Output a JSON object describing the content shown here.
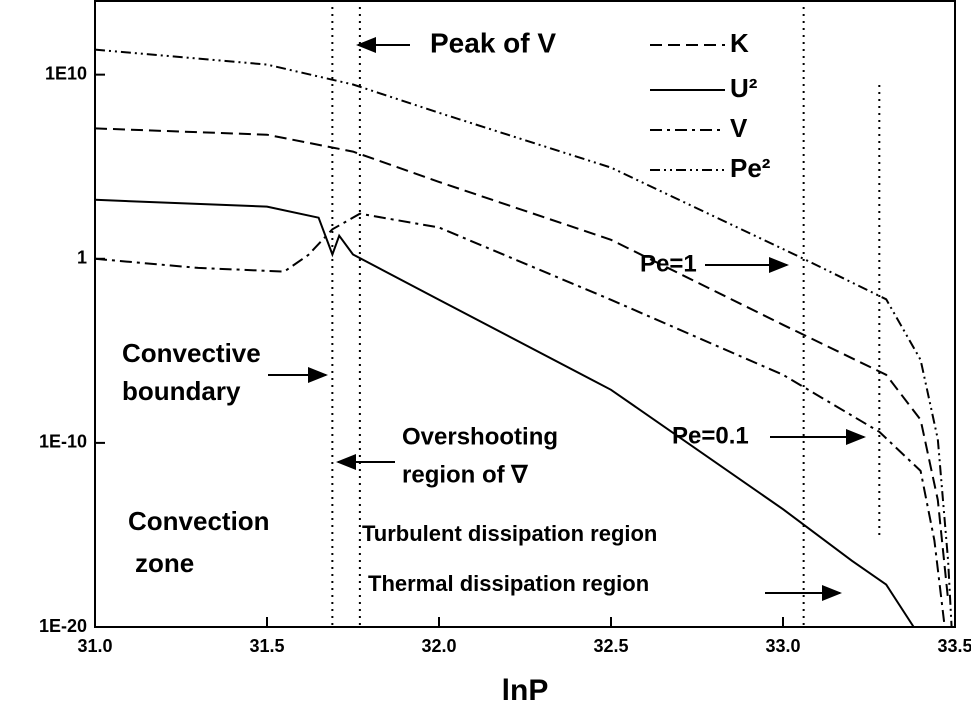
{
  "chart_data": {
    "type": "line",
    "x_label": "lnP",
    "xlim": [
      31.0,
      33.5
    ],
    "xticks": [
      {
        "value": 31.0,
        "label": "31.0"
      },
      31.5,
      {
        "value": 32.0,
        "label": "32.0"
      },
      32.5,
      {
        "value": 33.0,
        "label": "33.0"
      },
      33.5
    ],
    "ylim": [
      1e-20,
      100000000000000.0
    ],
    "yticks": [
      {
        "value": 1e-20,
        "label": "1E-20"
      },
      {
        "value": 1e-10,
        "label": "1E-10"
      },
      1,
      {
        "value": 10000000000.0,
        "label": "1E10"
      }
    ],
    "log_y": true,
    "legend": "upper right",
    "series": [
      {
        "name": "K",
        "color": "#000000",
        "dash": "12,6",
        "x": [
          31.0,
          31.5,
          31.75,
          32.0,
          32.5,
          33.0,
          33.3,
          33.4,
          33.45,
          33.48
        ],
        "values": [
          12000000.0,
          5500000.0,
          660000.0,
          15000.0,
          10.7,
          0.00026,
          5e-07,
          1.8e-09,
          8e-14,
          3e-19
        ]
      },
      {
        "name": "U²",
        "color": "#000000",
        "dash": "",
        "x": [
          31.0,
          31.5,
          31.65,
          31.69,
          31.71,
          31.75,
          32.0,
          32.5,
          33.0,
          33.2,
          33.3,
          33.38
        ],
        "values": [
          1600,
          680,
          170,
          1.7,
          18,
          1.7,
          0.0059,
          7.6e-08,
          2.5e-14,
          4e-17,
          2e-18,
          1e-20
        ]
      },
      {
        "name": "V",
        "color": "#000000",
        "dash": "12,5,3,5",
        "x": [
          31.0,
          31.3,
          31.55,
          31.62,
          31.69,
          31.77,
          32.0,
          32.5,
          33.0,
          33.28,
          33.4,
          33.44,
          33.47
        ],
        "values": [
          1,
          0.32,
          0.2,
          1.6,
          40,
          280,
          50,
          0.0059,
          5e-07,
          4e-10,
          3e-12,
          5e-16,
          1e-20
        ]
      },
      {
        "name": "Pe²",
        "color": "#000000",
        "dash": "10,4,2,4,2,4",
        "x": [
          31.0,
          31.5,
          31.75,
          32.0,
          32.5,
          33.06,
          33.3,
          33.4,
          33.45,
          33.48,
          33.49
        ],
        "values": [
          230000000000.0,
          35000000000.0,
          2900000000.0,
          85000000.0,
          89000.0,
          1,
          0.0063,
          3.2e-06,
          1.6e-10,
          4e-17,
          1e-20
        ]
      }
    ],
    "vlines": [
      31.69,
      31.77,
      33.06,
      33.28
    ],
    "annotations": [
      "Peak of V",
      "Pe=1",
      "Pe=0.1",
      "Convective",
      "boundary",
      "Overshooting",
      "region of ∇",
      "Convection",
      "zone",
      "Turbulent dissipation region",
      "Thermal dissipation region"
    ]
  }
}
